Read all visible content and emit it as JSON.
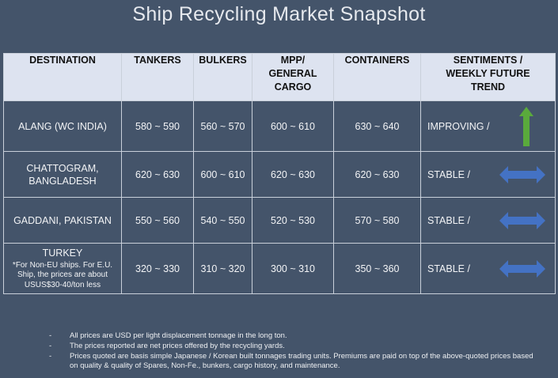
{
  "title": "Ship Recycling Market Snapshot",
  "headers": {
    "destination": "DESTINATION",
    "tankers": "TANKERS",
    "bulkers": "BULKERS",
    "mpp": "MPP/ GENERAL CARGO",
    "containers": "CONTAINERS",
    "sentiment": "SENTIMENTS / WEEKLY FUTURE TREND"
  },
  "rows": [
    {
      "destination": "ALANG (WC INDIA)",
      "note": "",
      "tankers": "580 ~ 590",
      "bulkers": "560 ~ 570",
      "mpp": "600 ~ 610",
      "containers": "630 ~ 640",
      "sentiment": "IMPROVING /",
      "trend_icon": "arrow-up-icon",
      "trend_color": "#5aaa3c"
    },
    {
      "destination": "CHATTOGRAM, BANGLADESH",
      "note": "",
      "tankers": "620 ~ 630",
      "bulkers": "600 ~ 610",
      "mpp": "620 ~ 630",
      "containers": "620 ~ 630",
      "sentiment": "STABLE /",
      "trend_icon": "arrow-left-right-icon",
      "trend_color": "#4472c4"
    },
    {
      "destination": "GADDANI, PAKISTAN",
      "note": "",
      "tankers": "550 ~ 560",
      "bulkers": "540 ~ 550",
      "mpp": "520 ~ 530",
      "containers": "570 ~ 580",
      "sentiment": "STABLE /",
      "trend_icon": "arrow-left-right-icon",
      "trend_color": "#4472c4"
    },
    {
      "destination": "TURKEY",
      "note": "*For Non-EU ships. For E.U. Ship, the prices are about USUS$30-40/ton less",
      "tankers": "320 ~ 330",
      "bulkers": "310 ~ 320",
      "mpp": "300 ~ 310",
      "containers": "350 ~ 360",
      "sentiment": "STABLE /",
      "trend_icon": "arrow-left-right-icon",
      "trend_color": "#4472c4"
    }
  ],
  "notes": [
    "All prices are USD per light displacement tonnage in the long ton.",
    "The prices reported are net prices offered by the recycling yards.",
    "Prices quoted are basis simple Japanese / Korean built tonnages trading units. Premiums are paid on top of the above-quoted prices based on quality & quality of Spares, Non-Fe., bunkers, cargo history, and maintenance."
  ]
}
